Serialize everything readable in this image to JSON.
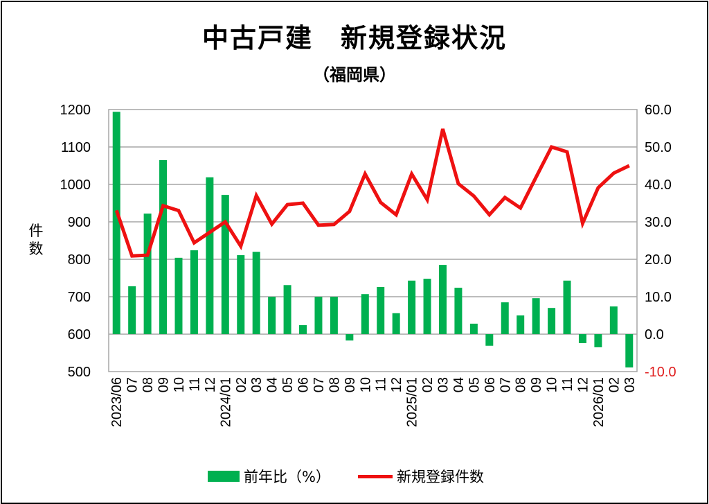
{
  "chart_data": {
    "type": "bar+line",
    "title": "中古戸建　新規登録状況",
    "subtitle": "（福岡県）",
    "ylabel_left": "件数",
    "ylim_left": [
      500,
      1200
    ],
    "yticks_left": [
      "1200",
      "1100",
      "1000",
      "900",
      "800",
      "700",
      "600",
      "500"
    ],
    "ylim_right": [
      -10,
      60
    ],
    "yticks_right": [
      "60.0",
      "50.0",
      "40.0",
      "30.0",
      "20.0",
      "10.0",
      "0.0",
      "-10.0"
    ],
    "grid": true,
    "legend_position": "bottom",
    "categories": [
      "2023/06",
      "07",
      "08",
      "09",
      "10",
      "11",
      "12",
      "2024/01",
      "02",
      "03",
      "04",
      "05",
      "06",
      "07",
      "08",
      "09",
      "10",
      "11",
      "12",
      "2025/01",
      "02",
      "03",
      "04",
      "05",
      "06",
      "07",
      "08",
      "09",
      "10",
      "11",
      "12",
      "2026/01",
      "02",
      "03"
    ],
    "series": [
      {
        "name": "前年比（%）",
        "type": "bar",
        "axis": "right",
        "color": "#00b050",
        "values": [
          59.4,
          12.8,
          32.2,
          46.5,
          20.4,
          22.4,
          41.9,
          37.2,
          21.1,
          22.0,
          10.0,
          13.1,
          2.4,
          10.0,
          10.0,
          -1.7,
          10.7,
          12.6,
          5.6,
          14.3,
          14.8,
          18.5,
          12.4,
          2.8,
          -3.1,
          8.5,
          5.0,
          9.6,
          7.0,
          14.3,
          -2.4,
          -3.5,
          7.4,
          -8.9
        ]
      },
      {
        "name": "新規登録件数",
        "type": "line",
        "axis": "left",
        "color": "#ee1111",
        "values": [
          931,
          809,
          811,
          943,
          930,
          844,
          872,
          900,
          835,
          970,
          894,
          946,
          950,
          891,
          893,
          928,
          1028,
          952,
          919,
          1028,
          959,
          1148,
          1002,
          969,
          919,
          965,
          937,
          1019,
          1100,
          1087,
          896,
          991,
          1030,
          1050
        ]
      }
    ],
    "colors": {
      "negative_tick": "#e02020",
      "grid": "#a6a6a6"
    }
  }
}
